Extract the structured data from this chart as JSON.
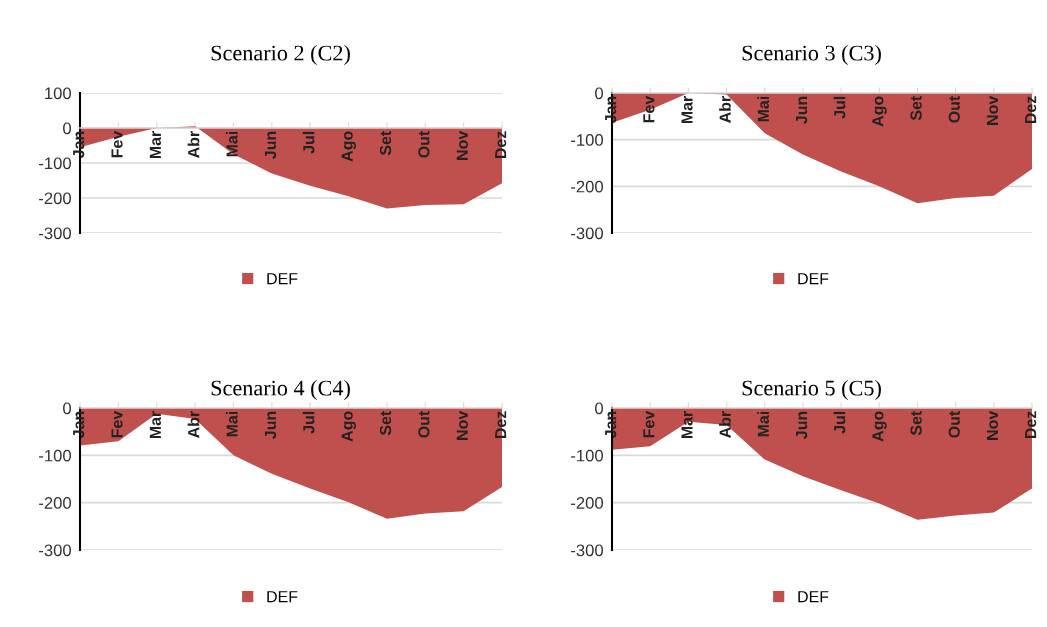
{
  "chart_data": [
    {
      "type": "area",
      "title": "Scenario 2 (C2)",
      "categories": [
        "Jan",
        "Fev",
        "Mar",
        "Abr",
        "Mai",
        "Jun",
        "Jul",
        "Ago",
        "Set",
        "Out",
        "Nov",
        "Dez"
      ],
      "series": [
        {
          "name": "DEF",
          "color": "#c0504d",
          "values": [
            -55,
            -25,
            0,
            5,
            -75,
            -130,
            -165,
            -195,
            -230,
            -220,
            -218,
            -158
          ]
        }
      ],
      "ylim": [
        -300,
        100
      ],
      "yticks": [
        -300,
        -200,
        -100,
        0,
        100
      ],
      "grid": "y",
      "legend": "bottom"
    },
    {
      "type": "area",
      "title": "Scenario 3 (C3)",
      "categories": [
        "Jan",
        "Fev",
        "Mar",
        "Abr",
        "Mai",
        "Jun",
        "Jul",
        "Ago",
        "Set",
        "Out",
        "Nov",
        "Dez"
      ],
      "series": [
        {
          "name": "DEF",
          "color": "#c0504d",
          "values": [
            -64,
            -36,
            0,
            -3,
            -86,
            -132,
            -168,
            -200,
            -236,
            -225,
            -220,
            -163
          ]
        }
      ],
      "ylim": [
        -300,
        0
      ],
      "yticks": [
        -300,
        -200,
        -100,
        0
      ],
      "grid": "y",
      "legend": "bottom"
    },
    {
      "type": "area",
      "title": "Scenario 4 (C4)",
      "categories": [
        "Jan",
        "Fev",
        "Mar",
        "Abr",
        "Mai",
        "Jun",
        "Jul",
        "Ago",
        "Set",
        "Out",
        "Nov",
        "Dez"
      ],
      "series": [
        {
          "name": "DEF",
          "color": "#c0504d",
          "values": [
            -79,
            -70,
            -12,
            -23,
            -100,
            -139,
            -170,
            -199,
            -234,
            -223,
            -218,
            -167
          ]
        }
      ],
      "ylim": [
        -300,
        0
      ],
      "yticks": [
        -300,
        -200,
        -100,
        0
      ],
      "grid": "y",
      "legend": "bottom"
    },
    {
      "type": "area",
      "title": "Scenario 5 (C5)",
      "categories": [
        "Jan",
        "Fev",
        "Mar",
        "Abr",
        "Mai",
        "Jun",
        "Jul",
        "Ago",
        "Set",
        "Out",
        "Nov",
        "Dez"
      ],
      "series": [
        {
          "name": "DEF",
          "color": "#c0504d",
          "values": [
            -88,
            -81,
            -29,
            -36,
            -109,
            -144,
            -174,
            -202,
            -236,
            -227,
            -221,
            -170
          ]
        }
      ],
      "ylim": [
        -300,
        0
      ],
      "yticks": [
        -300,
        -200,
        -100,
        0
      ],
      "grid": "y",
      "legend": "bottom"
    }
  ]
}
